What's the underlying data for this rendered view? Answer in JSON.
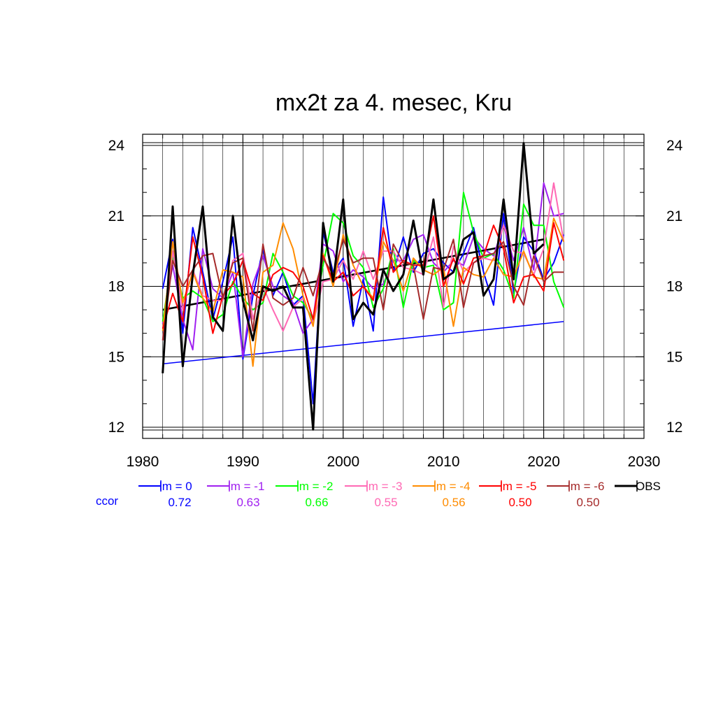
{
  "chart_data": {
    "type": "line",
    "title": "mx2t za 4. mesec, Kru",
    "xlim": [
      1980,
      2030
    ],
    "ylim": [
      12,
      24
    ],
    "x_ticks": [
      1980,
      1990,
      2000,
      2010,
      2020,
      2030
    ],
    "y_ticks": [
      12,
      15,
      18,
      21,
      24
    ],
    "x_tick_labels": [
      "1980",
      "1990",
      "2000",
      "2010",
      "2020",
      "2030"
    ],
    "y_tick_labels": [
      "12",
      "15",
      "18",
      "21",
      "24"
    ],
    "grid": true,
    "x": [
      1982,
      1983,
      1984,
      1985,
      1986,
      1987,
      1988,
      1989,
      1990,
      1991,
      1992,
      1993,
      1994,
      1995,
      1996,
      1997,
      1998,
      1999,
      2000,
      2001,
      2002,
      2003,
      2004,
      2005,
      2006,
      2007,
      2008,
      2009,
      2010,
      2011,
      2012,
      2013,
      2014,
      2015,
      2016,
      2017,
      2018,
      2019,
      2020,
      2021,
      2022
    ],
    "series": [
      {
        "name": "lm = 0",
        "color": "#0000ff",
        "corr": "0.72",
        "values": [
          17.9,
          20.0,
          16.0,
          20.5,
          18.6,
          16.6,
          18.2,
          20.1,
          14.9,
          17.6,
          19.6,
          17.6,
          18.6,
          17.2,
          17.6,
          13.0,
          20.3,
          18.6,
          19.2,
          16.3,
          18.3,
          16.1,
          21.8,
          18.6,
          20.1,
          18.6,
          19.4,
          19.6,
          19.0,
          18.6,
          19.4,
          20.5,
          18.6,
          17.2,
          21.1,
          17.7,
          20.1,
          19.5,
          18.3,
          19.0,
          20.2
        ]
      },
      {
        "name": "lm = -1",
        "color": "#a020f0",
        "corr": "0.63",
        "values": [
          16.4,
          18.9,
          16.6,
          15.3,
          19.6,
          17.9,
          17.5,
          18.6,
          15.0,
          18.1,
          19.3,
          18.0,
          17.6,
          17.3,
          16.0,
          16.6,
          19.8,
          19.5,
          18.2,
          18.7,
          18.4,
          17.9,
          18.1,
          19.1,
          19.1,
          20.0,
          20.2,
          19.0,
          18.6,
          19.1,
          18.9,
          20.1,
          19.6,
          19.3,
          20.6,
          19.1,
          20.5,
          18.7,
          22.4,
          21.0,
          21.1
        ]
      },
      {
        "name": "lm = -2",
        "color": "#00ff00",
        "corr": "0.66",
        "values": [
          16.5,
          19.3,
          17.5,
          17.8,
          17.5,
          16.5,
          16.8,
          18.2,
          17.5,
          17.0,
          17.3,
          19.4,
          18.6,
          17.6,
          17.3,
          16.6,
          18.9,
          21.1,
          20.7,
          19.3,
          18.8,
          17.1,
          17.9,
          19.6,
          17.1,
          19.1,
          18.8,
          18.9,
          17.0,
          17.3,
          22.0,
          20.3,
          19.2,
          19.4,
          18.7,
          17.5,
          21.5,
          20.6,
          20.6,
          18.2,
          17.1
        ]
      },
      {
        "name": "lm = -3",
        "color": "#ff69b4",
        "corr": "0.55",
        "values": [
          15.7,
          19.5,
          17.0,
          18.7,
          17.6,
          17.4,
          17.4,
          19.1,
          19.4,
          16.6,
          18.0,
          17.0,
          16.1,
          17.1,
          17.5,
          16.4,
          18.2,
          18.3,
          19.1,
          18.3,
          19.5,
          18.3,
          19.5,
          19.5,
          18.8,
          18.7,
          18.5,
          20.1,
          17.1,
          19.7,
          18.6,
          19.0,
          19.2,
          19.1,
          20.6,
          19.5,
          19.4,
          18.5,
          19.6,
          22.4,
          19.9
        ]
      },
      {
        "name": "lm = -4",
        "color": "#ff8c00",
        "corr": "0.56",
        "values": [
          16.1,
          19.9,
          17.3,
          18.6,
          17.5,
          16.9,
          18.7,
          18.6,
          18.4,
          14.6,
          18.6,
          18.9,
          20.7,
          19.6,
          17.6,
          16.3,
          19.4,
          18.0,
          20.2,
          18.9,
          18.0,
          17.5,
          19.9,
          19.1,
          17.8,
          19.2,
          18.7,
          18.5,
          18.8,
          16.3,
          18.8,
          18.5,
          18.4,
          19.2,
          18.5,
          18.4,
          19.5,
          18.4,
          18.3,
          20.9,
          19.9
        ]
      },
      {
        "name": "lm = -5",
        "color": "#ff0000",
        "corr": "0.50",
        "values": [
          16.2,
          17.7,
          16.5,
          20.1,
          18.4,
          16.0,
          17.6,
          18.1,
          19.1,
          17.7,
          17.4,
          18.5,
          18.8,
          18.6,
          18.0,
          16.6,
          19.3,
          18.2,
          18.6,
          17.6,
          18.0,
          17.4,
          20.5,
          18.6,
          19.1,
          18.9,
          18.9,
          21.0,
          18.0,
          19.2,
          18.1,
          19.2,
          19.3,
          20.6,
          19.6,
          17.3,
          18.4,
          18.5,
          17.8,
          20.7,
          19.1
        ]
      },
      {
        "name": "lm = -6",
        "color": "#a52a2a",
        "corr": "0.50",
        "values": [
          15.7,
          19.1,
          18.0,
          18.7,
          19.3,
          19.4,
          17.5,
          19.0,
          19.2,
          16.1,
          19.8,
          17.5,
          17.2,
          17.5,
          18.8,
          17.6,
          19.2,
          18.5,
          20.0,
          19.0,
          19.2,
          19.2,
          17.0,
          19.8,
          19.0,
          18.9,
          16.6,
          18.8,
          18.7,
          20.0,
          17.1,
          19.0,
          19.3,
          19.4,
          19.9,
          18.0,
          17.2,
          19.3,
          18.2,
          18.6,
          18.6
        ]
      },
      {
        "name": "OBS",
        "color": "#000000",
        "corr": "",
        "values": [
          14.3,
          21.4,
          14.6,
          18.5,
          21.4,
          16.7,
          16.1,
          21.0,
          17.4,
          15.7,
          18.0,
          17.8,
          18.0,
          17.1,
          17.1,
          11.9,
          20.7,
          18.2,
          21.7,
          16.6,
          17.3,
          16.8,
          18.7,
          17.8,
          18.5,
          20.8,
          18.5,
          21.7,
          18.3,
          18.6,
          20.0,
          20.3,
          17.6,
          18.3,
          21.7,
          18.3,
          24.1,
          19.4,
          19.8,
          null,
          null
        ]
      }
    ],
    "trend_lines": [
      {
        "series": "lm = 0",
        "color": "#0000ff",
        "x": [
          1982,
          2022
        ],
        "y": [
          14.7,
          16.5
        ]
      },
      {
        "series": "OBS",
        "color": "#000000",
        "x": [
          1982,
          2020
        ],
        "y": [
          17.0,
          20.0
        ]
      }
    ],
    "corr_label": "ccor",
    "legend_placement": "bottom"
  }
}
